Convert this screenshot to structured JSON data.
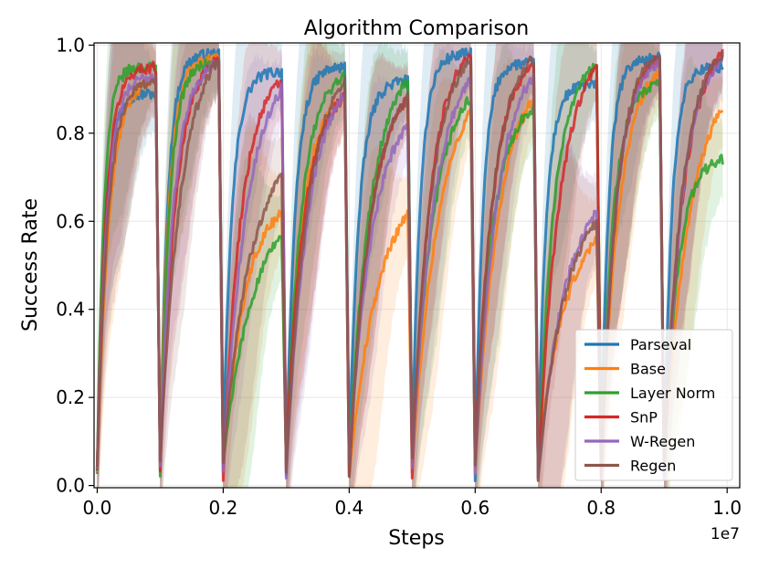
{
  "chart_data": {
    "type": "line",
    "title": "Algorithm Comparison",
    "xlabel": "Steps",
    "ylabel": "Success Rate",
    "x_offset_label": "1e7",
    "xlim": [
      -0.005,
      1.02
    ],
    "ylim": [
      -0.005,
      1.005
    ],
    "x_ticks": [
      0.0,
      0.2,
      0.4,
      0.6,
      0.8,
      1.0
    ],
    "x_tick_labels": [
      "0.0",
      "0.2",
      "0.4",
      "0.6",
      "0.8",
      "1.0"
    ],
    "y_ticks": [
      0.0,
      0.2,
      0.4,
      0.6,
      0.8,
      1.0
    ],
    "y_tick_labels": [
      "0.0",
      "0.2",
      "0.4",
      "0.6",
      "0.8",
      "1.0"
    ],
    "grid": true,
    "legend_position": "lower-right",
    "task_period": 0.1,
    "num_tasks": 10,
    "shaded_band": "variability band around each mean curve",
    "series": [
      {
        "name": "Parseval",
        "color": "#1f77b4",
        "task_end_values": [
          0.89,
          0.98,
          0.94,
          0.95,
          0.92,
          0.98,
          0.96,
          0.91,
          0.97,
          0.95
        ],
        "rise_rates": [
          14,
          14,
          12,
          12,
          11,
          13,
          14,
          13,
          14,
          14
        ]
      },
      {
        "name": "Base",
        "color": "#ff7f0e",
        "task_end_values": [
          0.92,
          0.97,
          0.62,
          0.88,
          0.62,
          0.85,
          0.88,
          0.56,
          0.94,
          0.86
        ],
        "rise_rates": [
          9,
          12,
          5,
          7,
          3.5,
          4,
          4.5,
          3.5,
          6,
          4
        ]
      },
      {
        "name": "Layer Norm",
        "color": "#2ca02c",
        "task_end_values": [
          0.95,
          0.96,
          0.57,
          0.93,
          0.92,
          0.88,
          0.86,
          0.95,
          0.91,
          0.74
        ],
        "rise_rates": [
          16,
          12,
          3.5,
          7,
          5,
          5,
          6,
          7,
          9,
          8
        ]
      },
      {
        "name": "SnP",
        "color": "#d62728",
        "task_end_values": [
          0.95,
          0.97,
          0.92,
          0.88,
          0.88,
          0.98,
          0.96,
          0.95,
          0.97,
          0.98
        ],
        "rise_rates": [
          12,
          7,
          6,
          6,
          5,
          6,
          6,
          5,
          7,
          5.5
        ]
      },
      {
        "name": "W-Regen",
        "color": "#9467bd",
        "task_end_values": [
          0.93,
          0.96,
          0.9,
          0.89,
          0.82,
          0.92,
          0.93,
          0.62,
          0.96,
          0.97
        ],
        "rise_rates": [
          11,
          8,
          4.5,
          5,
          4.5,
          5,
          5,
          4,
          7,
          6
        ]
      },
      {
        "name": "Regen",
        "color": "#8c564b",
        "task_end_values": [
          0.92,
          0.97,
          0.7,
          0.92,
          0.88,
          0.97,
          0.97,
          0.6,
          0.98,
          0.98
        ],
        "rise_rates": [
          10,
          5,
          4,
          5,
          5,
          5.5,
          6,
          4,
          7,
          6
        ]
      }
    ]
  }
}
